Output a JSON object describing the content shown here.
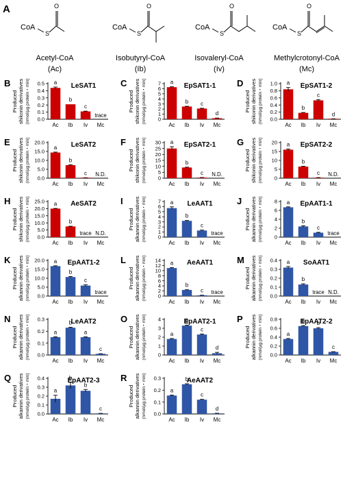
{
  "figure": {
    "panel_a_letter": "A",
    "compounds": [
      {
        "name": "Acetyl-CoA",
        "abbr": "(Ac)"
      },
      {
        "name": "Isobutyryl-CoA",
        "abbr": "(Ib)"
      },
      {
        "name": "Isovaleryl-CoA",
        "abbr": "(Iv)"
      },
      {
        "name": "Methylcrotonyl-CoA",
        "abbr": "(Mc)"
      }
    ],
    "structure_text": {
      "coa": "CoA",
      "s": "S",
      "o": "O"
    },
    "colors": {
      "red": "#cc0000",
      "blue": "#2f56a6"
    }
  },
  "chart_data": [
    {
      "panel": "B",
      "type": "bar",
      "title": "LeSAT1",
      "ylabel": [
        "Produced",
        "shikonin derivatives",
        "(nmol/µg protein・min)"
      ],
      "categories": [
        "Ac",
        "Ib",
        "Iv",
        "Mc"
      ],
      "ylim": [
        0,
        0.5
      ],
      "yticks": [
        "0.0",
        "0.1",
        "0.2",
        "0.3",
        "0.4",
        "0.5"
      ],
      "values": [
        0.44,
        0.21,
        0.11,
        null
      ],
      "errors": [
        0.012,
        0,
        0.004,
        0
      ],
      "letters": [
        "a",
        "b",
        "c",
        "trace"
      ],
      "color": "#cc0000"
    },
    {
      "panel": "C",
      "type": "bar",
      "title": "EpSAT1-1",
      "ylabel": [
        "Produced",
        "shikonin derivatives",
        "(nmol/µg protein・min)"
      ],
      "categories": [
        "Ac",
        "Ib",
        "Iv",
        "Mc"
      ],
      "ylim": [
        0,
        7
      ],
      "yticks": [
        "0",
        "1",
        "2",
        "3",
        "4",
        "5",
        "6",
        "7"
      ],
      "values": [
        6.3,
        2.5,
        2.1,
        0.2
      ],
      "errors": [
        0.08,
        0.05,
        0.06,
        0.04
      ],
      "letters": [
        "a",
        "b",
        "c",
        "d"
      ],
      "color": "#cc0000"
    },
    {
      "panel": "D",
      "type": "bar",
      "title": "EpSAT1-2",
      "ylabel": [
        "Produced",
        "shikonin derivatives",
        "(nmol/µg protein・min)"
      ],
      "categories": [
        "Ac",
        "Ib",
        "Iv",
        "Mc"
      ],
      "ylim": [
        0,
        1
      ],
      "yticks": [
        "0.0",
        "0.2",
        "0.4",
        "0.6",
        "0.8",
        "1.0"
      ],
      "values": [
        0.84,
        0.18,
        0.53,
        0.01
      ],
      "errors": [
        0.05,
        0.01,
        0.02,
        0.003
      ],
      "letters": [
        "a",
        "b",
        "c",
        "d"
      ],
      "color": "#cc0000"
    },
    {
      "panel": "E",
      "type": "bar",
      "title": "LeSAT2",
      "ylabel": [
        "Produced",
        "shikonin derivatives",
        "(nmol/µg protein・min)"
      ],
      "categories": [
        "Ac",
        "Ib",
        "Iv",
        "Mc"
      ],
      "ylim": [
        0,
        20
      ],
      "yticks": [
        "0.0",
        "5.0",
        "10.0",
        "15.0",
        "20.0"
      ],
      "values": [
        14.4,
        7.3,
        0.2,
        null
      ],
      "errors": [
        0.25,
        0.2,
        0.05,
        0
      ],
      "letters": [
        "a",
        "b",
        "c",
        "N.D."
      ],
      "color": "#cc0000"
    },
    {
      "panel": "F",
      "type": "bar",
      "title": "EpSAT2-1",
      "ylabel": [
        "Produced",
        "shikonin derivatives",
        "(nmol/µg protein・min)"
      ],
      "categories": [
        "Ac",
        "Ib",
        "Iv",
        "Mc"
      ],
      "ylim": [
        0,
        30
      ],
      "yticks": [
        "0",
        "5",
        "10",
        "15",
        "20",
        "25",
        "30"
      ],
      "values": [
        25.0,
        9.0,
        0.5,
        null
      ],
      "errors": [
        1.5,
        0.3,
        0.1,
        0
      ],
      "letters": [
        "a",
        "b",
        "c",
        "N.D."
      ],
      "color": "#cc0000"
    },
    {
      "panel": "G",
      "type": "bar",
      "title": "EpSAT2-2",
      "ylabel": [
        "Produced",
        "shikonin derivatives",
        "(nmol/µg protein・min)"
      ],
      "categories": [
        "Ac",
        "Ib",
        "Iv",
        "Mc"
      ],
      "ylim": [
        0,
        20
      ],
      "yticks": [
        "0",
        "5",
        "10",
        "15",
        "20"
      ],
      "values": [
        16.0,
        6.5,
        0.3,
        null
      ],
      "errors": [
        0.4,
        0.2,
        0.05,
        0
      ],
      "letters": [
        "a",
        "b",
        "c",
        "N.D."
      ],
      "color": "#cc0000"
    },
    {
      "panel": "H",
      "type": "bar",
      "title": "AeSAT2",
      "ylabel": [
        "Produced",
        "shikonin derivatives",
        "(nmol/µg protein・min)"
      ],
      "categories": [
        "Ac",
        "Ib",
        "Iv",
        "Mc"
      ],
      "ylim": [
        0,
        25
      ],
      "yticks": [
        "0.0",
        "5.0",
        "10.0",
        "15.0",
        "20.0",
        "25.0"
      ],
      "values": [
        20.0,
        7.5,
        null,
        null
      ],
      "errors": [
        0.15,
        0.15,
        0,
        0
      ],
      "letters": [
        "a",
        "b",
        "trace",
        "N.D."
      ],
      "color": "#cc0000"
    },
    {
      "panel": "I",
      "type": "bar",
      "title": "LeAAT1",
      "ylabel": [
        "Produced",
        "alkannin derivatives",
        "(nmol/µg protein・min)"
      ],
      "categories": [
        "Ac",
        "Ib",
        "Iv",
        "Mc"
      ],
      "ylim": [
        0,
        7
      ],
      "yticks": [
        "0",
        "1",
        "2",
        "3",
        "4",
        "5",
        "6",
        "7"
      ],
      "values": [
        5.7,
        3.2,
        1.3,
        null
      ],
      "errors": [
        0.25,
        0.08,
        0.08,
        0
      ],
      "letters": [
        "a",
        "b",
        "c",
        "trace"
      ],
      "color": "#2f56a6"
    },
    {
      "panel": "J",
      "type": "bar",
      "title": "EpAAT1-1",
      "ylabel": [
        "Produced",
        "alkannin derivatives",
        "(nmol/µg protein・min)"
      ],
      "categories": [
        "Ac",
        "Ib",
        "Iv",
        "Mc"
      ],
      "ylim": [
        0,
        8
      ],
      "yticks": [
        "0",
        "2",
        "4",
        "6",
        "8"
      ],
      "values": [
        6.7,
        2.4,
        1.0,
        null
      ],
      "errors": [
        0.1,
        0.15,
        0.08,
        0
      ],
      "letters": [
        "a",
        "b",
        "c",
        "trace"
      ],
      "color": "#2f56a6"
    },
    {
      "panel": "K",
      "type": "bar",
      "title": "EpAAT1-2",
      "ylabel": [
        "Produced",
        "alkannin derivatives",
        "(nmol/µg protein・min)"
      ],
      "categories": [
        "Ac",
        "Ib",
        "Iv",
        "Mc"
      ],
      "ylim": [
        0,
        20
      ],
      "yticks": [
        "0.0",
        "5.0",
        "10.0",
        "15.0",
        "20.0"
      ],
      "values": [
        16.8,
        10.7,
        5.9,
        null
      ],
      "errors": [
        0.2,
        0.3,
        0.4,
        0
      ],
      "letters": [
        "a",
        "b",
        "c",
        "trace"
      ],
      "color": "#2f56a6"
    },
    {
      "panel": "L",
      "type": "bar",
      "title": "AeAAT1",
      "ylabel": [
        "Produced",
        "alkannin derivatives",
        "(nmol/µg protein・min)"
      ],
      "categories": [
        "Ac",
        "Ib",
        "Iv",
        "Mc"
      ],
      "ylim": [
        0,
        14
      ],
      "yticks": [
        "0",
        "2",
        "4",
        "6",
        "8",
        "10",
        "12",
        "14"
      ],
      "values": [
        11.0,
        2.4,
        0.3,
        null
      ],
      "errors": [
        0.2,
        0.1,
        0.05,
        0
      ],
      "letters": [
        "a",
        "b",
        "c",
        "trace"
      ],
      "color": "#2f56a6"
    },
    {
      "panel": "M",
      "type": "bar",
      "title": "SoAAT1",
      "ylabel": [
        "Produced",
        "alkannin derivatives",
        "(nmol/µg protein・min)"
      ],
      "categories": [
        "Ac",
        "Ib",
        "Iv",
        "Mc"
      ],
      "ylim": [
        0,
        0.4
      ],
      "yticks": [
        "0.0",
        "0.1",
        "0.2",
        "0.3",
        "0.4"
      ],
      "values": [
        0.32,
        0.13,
        null,
        null
      ],
      "errors": [
        0.012,
        0.008,
        0,
        0
      ],
      "letters": [
        "a",
        "b",
        "trace",
        "N.D."
      ],
      "color": "#2f56a6"
    },
    {
      "panel": "N",
      "type": "bar",
      "title": "LeAAT2",
      "ylabel": [
        "Produced",
        "alkannin derivatives",
        "(nmol/µg protein・min)"
      ],
      "categories": [
        "Ac",
        "Ib",
        "Iv",
        "Mc"
      ],
      "ylim": [
        0,
        0.3
      ],
      "yticks": [
        "0.0",
        "0.1",
        "0.2",
        "0.3"
      ],
      "values": [
        0.15,
        0.23,
        0.15,
        0.01
      ],
      "errors": [
        0.003,
        0.004,
        0.003,
        0.001
      ],
      "letters": [
        "a",
        "b",
        "a",
        "c"
      ],
      "color": "#2f56a6"
    },
    {
      "panel": "O",
      "type": "bar",
      "title": "EpAAT2-1",
      "ylabel": [
        "Produced",
        "alkannin derivatives",
        "(nmol/µg protein・min)"
      ],
      "categories": [
        "Ac",
        "Ib",
        "Iv",
        "Mc"
      ],
      "ylim": [
        0,
        4
      ],
      "yticks": [
        "0",
        "1",
        "2",
        "3",
        "4"
      ],
      "values": [
        1.8,
        3.3,
        2.3,
        0.2
      ],
      "errors": [
        0.05,
        0.06,
        0.06,
        0.1
      ],
      "letters": [
        "a",
        "b",
        "c",
        "d"
      ],
      "color": "#2f56a6"
    },
    {
      "panel": "P",
      "type": "bar",
      "title": "EpAAT2-2",
      "ylabel": [
        "Produced",
        "alkannin derivatives",
        "(nmol/µg protein・min)"
      ],
      "categories": [
        "Ac",
        "Ib",
        "Iv",
        "Mc"
      ],
      "ylim": [
        0,
        0.8
      ],
      "yticks": [
        "0.0",
        "0.2",
        "0.4",
        "0.6",
        "0.8"
      ],
      "values": [
        0.36,
        0.65,
        0.6,
        0.07
      ],
      "errors": [
        0.01,
        0.01,
        0.015,
        0.005
      ],
      "letters": [
        "a",
        "b",
        "b",
        "c"
      ],
      "color": "#2f56a6"
    },
    {
      "panel": "Q",
      "type": "bar",
      "title": "EpAAT2-3",
      "ylabel": [
        "Produced",
        "alkannin derivatives",
        "(nmol/µg protein・min)"
      ],
      "categories": [
        "Ac",
        "Ib",
        "Iv",
        "Mc"
      ],
      "ylim": [
        0,
        0.4
      ],
      "yticks": [
        "0.0",
        "0.1",
        "0.2",
        "0.3",
        "0.4"
      ],
      "values": [
        0.17,
        0.32,
        0.26,
        0.005
      ],
      "errors": [
        0.04,
        0.035,
        0.015,
        0.002
      ],
      "letters": [
        "a",
        "b",
        "b",
        "c"
      ],
      "color": "#2f56a6"
    },
    {
      "panel": "R",
      "type": "bar",
      "title": "AeAAT2",
      "ylabel": [
        "Produced",
        "alkannin derivatives",
        "(nmol/µg protein・min)"
      ],
      "categories": [
        "Ac",
        "Ib",
        "Iv",
        "Mc"
      ],
      "ylim": [
        0,
        0.3
      ],
      "yticks": [
        "0.0",
        "0.1",
        "0.2",
        "0.3"
      ],
      "values": [
        0.155,
        0.25,
        0.12,
        0.005
      ],
      "errors": [
        0.004,
        0.004,
        0.003,
        0.001
      ],
      "letters": [
        "a",
        "b",
        "c",
        "d"
      ],
      "color": "#2f56a6"
    }
  ]
}
